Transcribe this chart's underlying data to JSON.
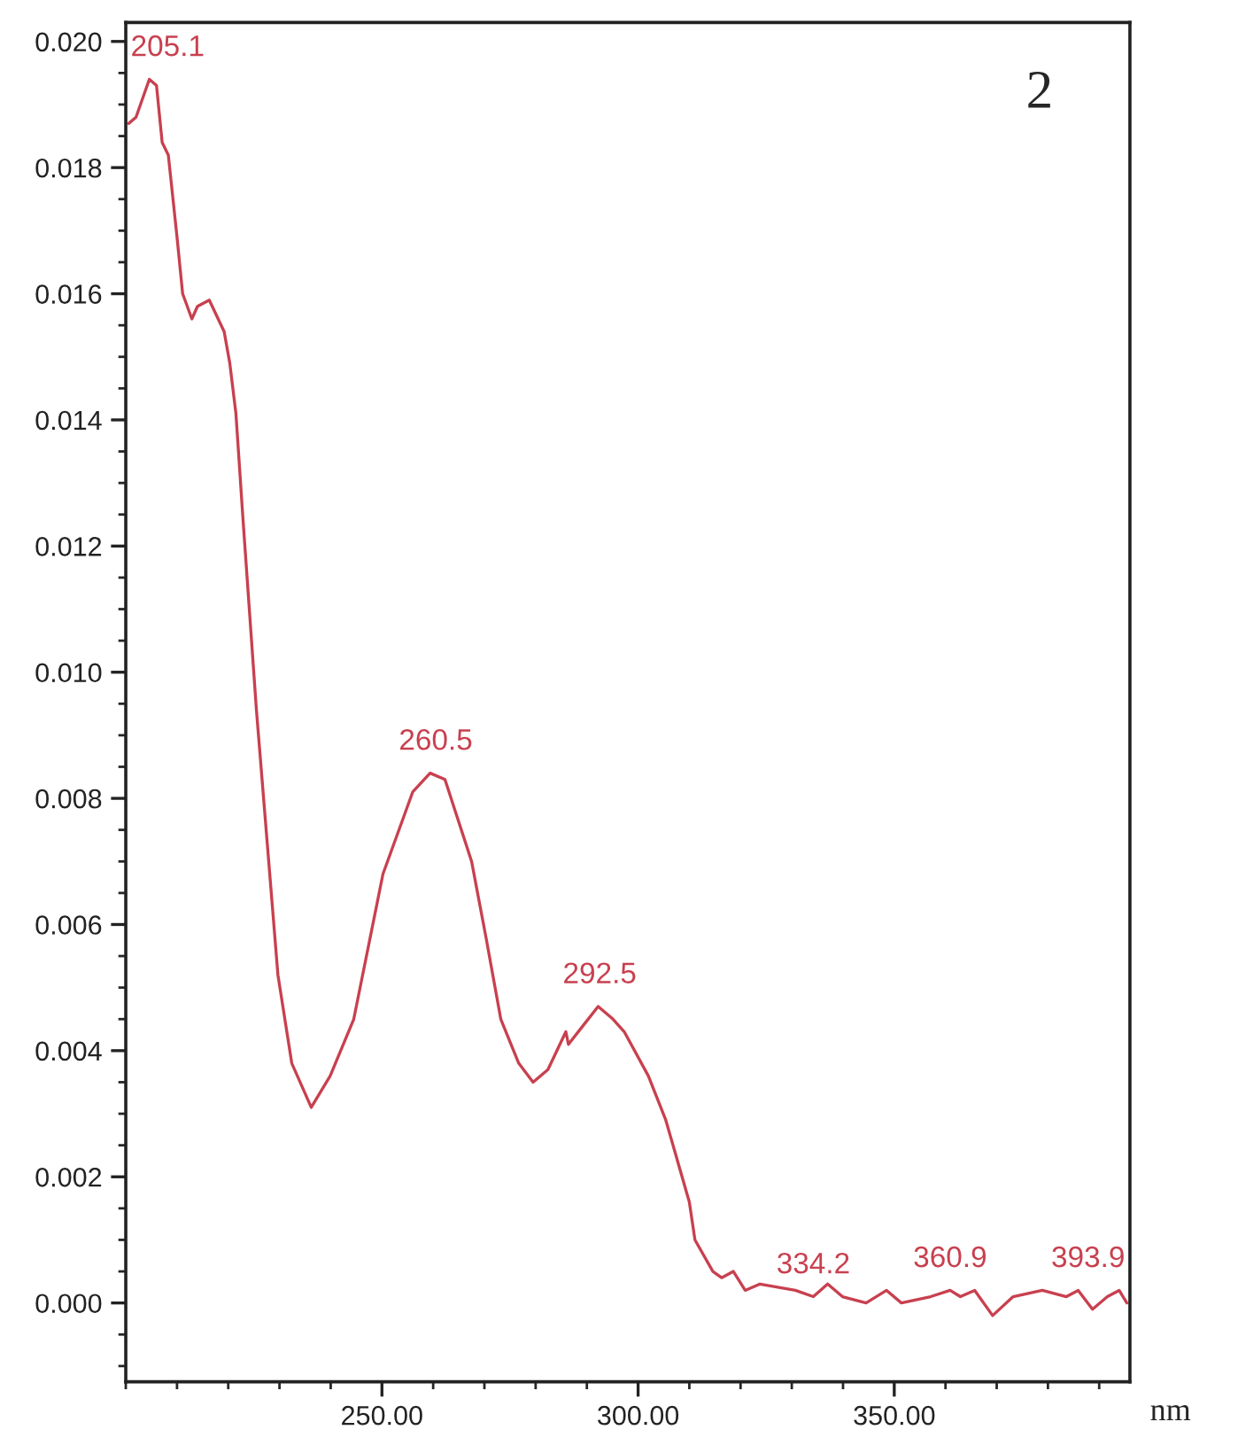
{
  "chart_data": {
    "type": "line",
    "xlabel": "nm",
    "x": [
      200.6,
      202.0,
      204.6,
      206.0,
      207.1,
      208.3,
      210.0,
      211.1,
      212.9,
      214.0,
      216.3,
      219.2,
      220.3,
      221.5,
      222.9,
      225.5,
      229.7,
      232.4,
      236.2,
      239.9,
      244.5,
      250.2,
      256.0,
      259.4,
      262.3,
      267.5,
      270.3,
      273.2,
      276.7,
      279.5,
      282.4,
      285.9,
      286.4,
      289.3,
      292.2,
      295.1,
      297.3,
      302.0,
      305.4,
      310.0,
      311.1,
      314.6,
      316.3,
      318.6,
      320.9,
      323.8,
      330.7,
      334.2,
      337.0,
      339.9,
      344.5,
      348.5,
      351.4,
      357.1,
      360.9,
      362.9,
      365.7,
      369.2,
      373.2,
      378.9,
      383.6,
      385.9,
      388.7,
      391.6,
      393.9,
      395.4
    ],
    "series": [
      {
        "color": "#c8404f",
        "values": [
          0.0187,
          0.0188,
          0.0194,
          0.0193,
          0.0184,
          0.0182,
          0.0169,
          0.016,
          0.0156,
          0.0158,
          0.0159,
          0.0154,
          0.0149,
          0.0141,
          0.0124,
          0.0094,
          0.0052,
          0.0038,
          0.0031,
          0.0036,
          0.0045,
          0.0068,
          0.0081,
          0.0084,
          0.0083,
          0.007,
          0.0058,
          0.0045,
          0.0038,
          0.0035,
          0.0037,
          0.0043,
          0.0041,
          0.0044,
          0.0047,
          0.0045,
          0.0043,
          0.0036,
          0.0029,
          0.0016,
          0.001,
          0.0005,
          0.0004,
          0.0005,
          0.0002,
          0.0003,
          0.0002,
          0.0001,
          0.0003,
          0.0001,
          0.0,
          0.0002,
          0.0,
          0.0001,
          0.0002,
          0.0001,
          0.0002,
          -0.0002,
          0.0001,
          0.0002,
          0.0001,
          0.0002,
          -0.0001,
          0.0001,
          0.0002,
          0.0
        ]
      }
    ],
    "xlim": [
      200,
      396
    ],
    "xticks": [
      {
        "value": 250,
        "label": "250.00"
      },
      {
        "value": 300,
        "label": "300.00"
      },
      {
        "value": 350,
        "label": "350.00"
      }
    ],
    "ylim": [
      -0.00125,
      0.0203
    ],
    "yticks": [
      {
        "value": 0.0,
        "label": "0.000"
      },
      {
        "value": 0.002,
        "label": "0.002"
      },
      {
        "value": 0.004,
        "label": "0.004"
      },
      {
        "value": 0.006,
        "label": "0.006"
      },
      {
        "value": 0.008,
        "label": "0.008"
      },
      {
        "value": 0.01,
        "label": "0.010"
      },
      {
        "value": 0.012,
        "label": "0.012"
      },
      {
        "value": 0.014,
        "label": "0.014"
      },
      {
        "value": 0.016,
        "label": "0.016"
      },
      {
        "value": 0.018,
        "label": "0.018"
      },
      {
        "value": 0.02,
        "label": "0.020"
      }
    ],
    "grid": false,
    "legend": false,
    "marker": "none",
    "line_style": "solid",
    "annotations": [
      {
        "text": "205.1",
        "x": 205.1,
        "y": 0.0194
      },
      {
        "text": "260.5",
        "x": 260.5,
        "y": 0.0084
      },
      {
        "text": "292.5",
        "x": 292.5,
        "y": 0.0047
      },
      {
        "text": "334.2",
        "x": 334.2,
        "y": 0.0001
      },
      {
        "text": "360.9",
        "x": 360.9,
        "y": 0.0002
      },
      {
        "text": "393.9",
        "x": 393.9,
        "y": 0.0002
      },
      "2"
    ]
  }
}
